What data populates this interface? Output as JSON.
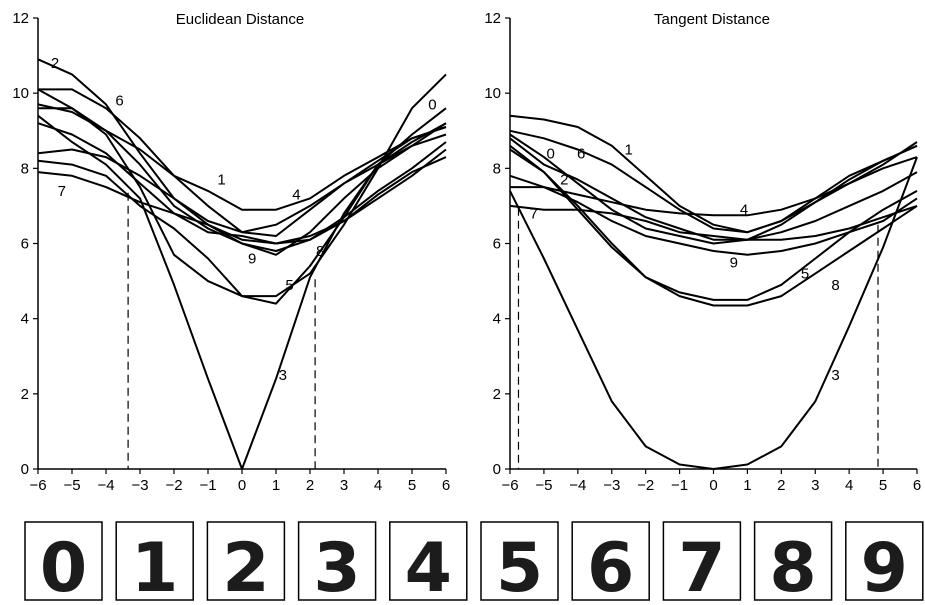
{
  "chart_data": [
    {
      "type": "line",
      "title": "Euclidean Distance",
      "x": [
        -6,
        -5,
        -4,
        -3,
        -2,
        -1,
        0,
        1,
        2,
        3,
        4,
        5,
        6
      ],
      "xlim": [
        -6,
        6
      ],
      "ylim": [
        0,
        12
      ],
      "xticks": [
        "−6",
        "−5",
        "−4",
        "−3",
        "−2",
        "−1",
        "0",
        "1",
        "2",
        "3",
        "4",
        "5",
        "6"
      ],
      "yticks": [
        "0",
        "2",
        "4",
        "6",
        "8",
        "10",
        "12"
      ],
      "series": [
        {
          "name": "0",
          "values": [
            10.1,
            9.6,
            8.9,
            7.5,
            5.7,
            5.0,
            4.6,
            4.6,
            5.2,
            6.5,
            8.0,
            9.6,
            10.5
          ],
          "label_at": [
            5.6,
            9.7
          ]
        },
        {
          "name": "1",
          "values": [
            9.6,
            9.6,
            9.0,
            8.5,
            7.8,
            7.4,
            6.9,
            6.9,
            7.2,
            7.8,
            8.3,
            8.8,
            9.1
          ],
          "label_at": [
            -0.6,
            7.7
          ]
        },
        {
          "name": "2",
          "values": [
            10.9,
            10.5,
            9.7,
            8.4,
            7.2,
            6.5,
            6.0,
            5.7,
            6.3,
            7.2,
            8.0,
            8.6,
            9.2
          ],
          "label_at": [
            -5.5,
            10.8
          ]
        },
        {
          "name": "3",
          "values": [
            9.4,
            8.7,
            8.1,
            7.2,
            4.9,
            2.4,
            0.0,
            2.4,
            5.1,
            6.8,
            8.1,
            8.9,
            9.6
          ],
          "label_at": [
            1.2,
            2.5
          ]
        },
        {
          "name": "4",
          "values": [
            8.4,
            8.5,
            8.3,
            7.8,
            7.2,
            6.6,
            6.3,
            6.5,
            7.0,
            7.6,
            8.2,
            8.8,
            9.1
          ],
          "label_at": [
            1.6,
            7.3
          ]
        },
        {
          "name": "5",
          "values": [
            8.2,
            8.1,
            7.8,
            7.0,
            6.4,
            5.6,
            4.6,
            4.4,
            5.4,
            6.7,
            8.1,
            8.6,
            8.9
          ],
          "label_at": [
            1.4,
            4.9
          ]
        },
        {
          "name": "6",
          "values": [
            10.1,
            10.1,
            9.6,
            8.8,
            7.8,
            7.0,
            6.3,
            6.2,
            6.9,
            7.6,
            8.1,
            8.7,
            9.2
          ],
          "label_at": [
            -3.6,
            9.8
          ]
        },
        {
          "name": "7",
          "values": [
            7.9,
            7.8,
            7.5,
            7.1,
            6.8,
            6.5,
            6.1,
            6.0,
            6.1,
            6.6,
            7.3,
            7.9,
            8.3
          ],
          "label_at": [
            -5.3,
            7.4
          ]
        },
        {
          "name": "8",
          "values": [
            9.2,
            8.9,
            8.4,
            7.6,
            6.8,
            6.3,
            6.2,
            6.0,
            6.2,
            6.6,
            7.2,
            7.8,
            8.5
          ],
          "label_at": [
            2.3,
            5.8
          ]
        },
        {
          "name": "9",
          "values": [
            9.7,
            9.5,
            9.0,
            8.1,
            7.0,
            6.4,
            6.0,
            5.8,
            6.1,
            6.7,
            7.4,
            8.0,
            8.7
          ],
          "label_at": [
            0.3,
            5.6
          ]
        }
      ],
      "dashed_vlines": [
        {
          "x": -3.35,
          "y": 7.35
        },
        {
          "x": 2.15,
          "y": 5.05
        }
      ]
    },
    {
      "type": "line",
      "title": "Tangent Distance",
      "x": [
        -6,
        -5,
        -4,
        -3,
        -2,
        -1,
        0,
        1,
        2,
        3,
        4,
        5,
        6
      ],
      "xlim": [
        -6,
        6
      ],
      "ylim": [
        0,
        12
      ],
      "xticks": [
        "−6",
        "−5",
        "−4",
        "−3",
        "−2",
        "−1",
        "0",
        "1",
        "2",
        "3",
        "4",
        "5",
        "6"
      ],
      "yticks": [
        "0",
        "2",
        "4",
        "6",
        "8",
        "10",
        "12"
      ],
      "series": [
        {
          "name": "0",
          "values": [
            8.9,
            8.3,
            7.6,
            6.9,
            6.4,
            6.2,
            6.0,
            6.1,
            6.5,
            7.1,
            7.7,
            8.2,
            8.6
          ],
          "label_at": [
            -4.8,
            8.4
          ]
        },
        {
          "name": "1",
          "values": [
            9.4,
            9.3,
            9.1,
            8.6,
            7.8,
            7.0,
            6.5,
            6.3,
            6.6,
            7.1,
            7.6,
            8.1,
            8.7
          ],
          "label_at": [
            -2.5,
            8.5
          ]
        },
        {
          "name": "2",
          "values": [
            8.8,
            8.1,
            7.7,
            7.2,
            6.7,
            6.4,
            6.1,
            6.1,
            6.3,
            6.6,
            7.0,
            7.4,
            7.9
          ],
          "label_at": [
            -4.4,
            7.7
          ]
        },
        {
          "name": "3",
          "values": [
            7.4,
            5.6,
            3.7,
            1.8,
            0.6,
            0.12,
            0.0,
            0.12,
            0.6,
            1.8,
            3.8,
            5.9,
            8.3
          ],
          "label_at": [
            3.6,
            2.5
          ]
        },
        {
          "name": "4",
          "values": [
            7.5,
            7.5,
            7.3,
            7.1,
            6.9,
            6.8,
            6.75,
            6.75,
            6.9,
            7.2,
            7.6,
            8.0,
            8.3
          ],
          "label_at": [
            0.9,
            6.9
          ]
        },
        {
          "name": "5",
          "values": [
            8.5,
            7.9,
            7.0,
            6.0,
            5.1,
            4.7,
            4.5,
            4.5,
            4.9,
            5.6,
            6.3,
            6.9,
            7.4
          ],
          "label_at": [
            2.7,
            5.2
          ]
        },
        {
          "name": "6",
          "values": [
            9.0,
            8.8,
            8.5,
            8.1,
            7.5,
            6.9,
            6.4,
            6.3,
            6.6,
            7.2,
            7.8,
            8.2,
            8.6
          ],
          "label_at": [
            -3.9,
            8.4
          ]
        },
        {
          "name": "7",
          "values": [
            7.0,
            6.9,
            6.9,
            6.8,
            6.6,
            6.3,
            6.2,
            6.1,
            6.1,
            6.2,
            6.4,
            6.7,
            7.0
          ],
          "label_at": [
            -5.3,
            6.8
          ]
        },
        {
          "name": "8",
          "values": [
            8.6,
            7.9,
            6.9,
            5.9,
            5.1,
            4.6,
            4.35,
            4.35,
            4.6,
            5.2,
            5.8,
            6.4,
            7.0
          ],
          "label_at": [
            3.6,
            4.9
          ]
        },
        {
          "name": "9",
          "values": [
            7.8,
            7.5,
            7.1,
            6.6,
            6.2,
            6.0,
            5.8,
            5.7,
            5.8,
            6.0,
            6.3,
            6.6,
            7.2
          ],
          "label_at": [
            0.6,
            5.5
          ]
        }
      ],
      "dashed_vlines": [
        {
          "x": -5.75,
          "y": 6.95
        },
        {
          "x": 4.85,
          "y": 6.5
        }
      ]
    }
  ],
  "digits": [
    "0",
    "1",
    "2",
    "3",
    "4",
    "5",
    "6",
    "7",
    "8",
    "9"
  ]
}
